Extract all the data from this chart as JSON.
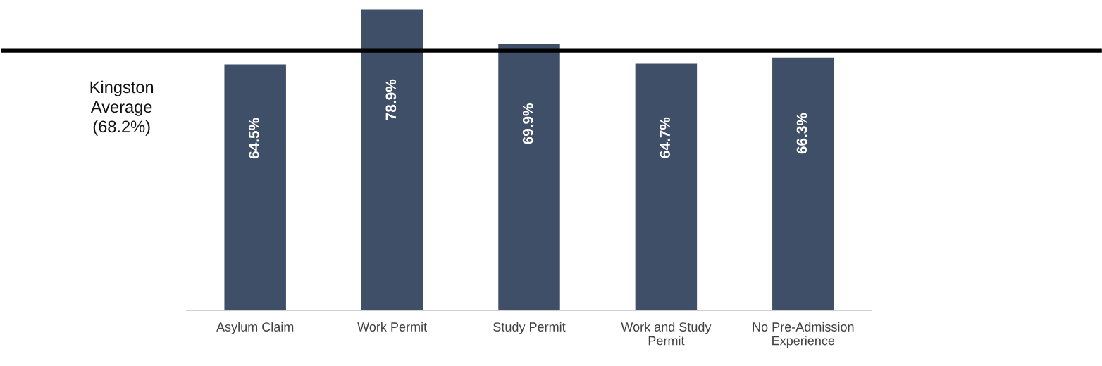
{
  "chart_data": {
    "type": "bar",
    "categories": [
      "Asylum Claim",
      "Work Permit",
      "Study Permit",
      "Work and Study\nPermit",
      "No Pre-Admission\nExperience"
    ],
    "values": [
      64.5,
      78.9,
      69.9,
      64.7,
      66.3
    ],
    "value_labels": [
      "64.5%",
      "78.9%",
      "69.9%",
      "64.7%",
      "66.3%"
    ],
    "color": "#3f4f68",
    "tick_labels": "x",
    "grid": false,
    "legend": false,
    "ref_lines": [
      {
        "axis": "y",
        "value": 68.2,
        "label": "Kingston\nAverage\n(68.2%)",
        "color": "#000000",
        "line_style": "solid"
      }
    ]
  }
}
